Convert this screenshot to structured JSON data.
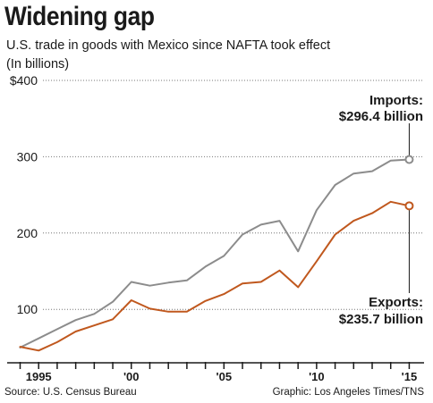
{
  "title": "Widening gap",
  "subtitle": "U.S. trade in goods with Mexico since NAFTA took effect",
  "units_label": "(In billions)",
  "source": "Source: U.S. Census Bureau",
  "credit": "Graphic: Los Angeles Times/TNS",
  "colors": {
    "imports": "#8c8c8c",
    "exports": "#c0581e",
    "grid": "#777777",
    "text": "#1a1a1a"
  },
  "chart_data": {
    "type": "line",
    "x": [
      1994,
      1995,
      1996,
      1997,
      1998,
      1999,
      2000,
      2001,
      2002,
      2003,
      2004,
      2005,
      2006,
      2007,
      2008,
      2009,
      2010,
      2011,
      2012,
      2013,
      2014,
      2015
    ],
    "series": [
      {
        "name": "Imports",
        "values": [
          50,
          62,
          74,
          86,
          94,
          110,
          136,
          131,
          135,
          138,
          156,
          170,
          198,
          211,
          216,
          176,
          230,
          263,
          278,
          281,
          295,
          296.4
        ]
      },
      {
        "name": "Exports",
        "values": [
          51,
          46,
          57,
          71,
          79,
          87,
          112,
          101,
          97,
          97,
          111,
          120,
          134,
          136,
          151,
          129,
          163,
          198,
          216,
          226,
          241,
          235.7
        ]
      }
    ],
    "ylim": [
      30,
      400
    ],
    "xlim": [
      1993.3,
      2015.8
    ],
    "y_ticks": [
      {
        "value": 100,
        "label": "100"
      },
      {
        "value": 200,
        "label": "200"
      },
      {
        "value": 300,
        "label": "300"
      },
      {
        "value": 400,
        "label": "$400"
      }
    ],
    "x_tick_labels": [
      {
        "value": 1995,
        "label": "1995"
      },
      {
        "value": 2000,
        "label": "'00"
      },
      {
        "value": 2005,
        "label": "'05"
      },
      {
        "value": 2010,
        "label": "'10"
      },
      {
        "value": 2015,
        "label": "'15"
      }
    ],
    "annotations": {
      "imports": {
        "name": "Imports:",
        "value": "$296.4 billion"
      },
      "exports": {
        "name": "Exports:",
        "value": "$235.7 billion"
      }
    },
    "grid": true,
    "grid_style": "dotted"
  }
}
